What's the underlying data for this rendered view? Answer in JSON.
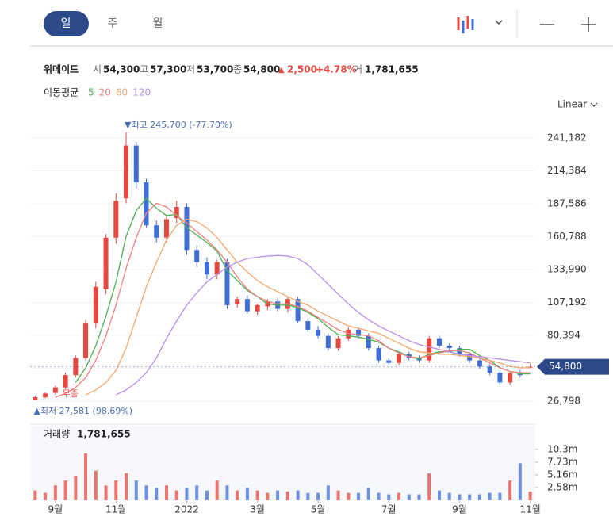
{
  "header": {
    "tabs": [
      "일",
      "주",
      "월"
    ],
    "scale_mode": "Linear"
  },
  "stock": {
    "name": "위메이드",
    "open_label": "시",
    "open": "54,300",
    "high_label": "고",
    "high": "57,300",
    "low_label": "저",
    "low": "53,700",
    "close_label": "종",
    "close": "54,800",
    "change_sign": "▲",
    "change": "2,500",
    "change_pct": "+4.78%",
    "volume_label": "거",
    "volume": "1,781,655"
  },
  "chart_data": {
    "type": "candlestick",
    "ma_title": "이동평균",
    "categories": [
      null,
      null,
      "9월",
      null,
      null,
      null,
      null,
      null,
      "11월",
      null,
      null,
      null,
      null,
      null,
      null,
      "2022",
      null,
      null,
      null,
      null,
      null,
      null,
      "3월",
      null,
      null,
      null,
      null,
      null,
      "5월",
      null,
      null,
      null,
      null,
      null,
      null,
      "7월",
      null,
      null,
      null,
      null,
      null,
      null,
      "9월",
      null,
      null,
      null,
      null,
      null,
      null,
      "11월"
    ],
    "open": [
      28000,
      30000,
      33500,
      38000,
      48000,
      62000,
      90000,
      118000,
      160000,
      192000,
      235000,
      205000,
      170000,
      160000,
      176000,
      185000,
      150000,
      140000,
      130000,
      140000,
      106000,
      110000,
      100000,
      104000,
      108000,
      102000,
      110000,
      92000,
      85000,
      80000,
      70000,
      78000,
      85000,
      80000,
      70000,
      60000,
      58000,
      65000,
      62000,
      60000,
      78000,
      72000,
      70000,
      65000,
      60000,
      55000,
      50000,
      42000,
      50000,
      54300
    ],
    "high": [
      31000,
      34000,
      39500,
      50000,
      64000,
      93000,
      124000,
      163000,
      196000,
      245700,
      238000,
      208000,
      174000,
      178000,
      190000,
      188000,
      154000,
      144000,
      142000,
      143000,
      112000,
      113000,
      106000,
      110000,
      111000,
      112000,
      112000,
      94000,
      88000,
      82000,
      80000,
      87000,
      87000,
      82000,
      72000,
      62000,
      67000,
      67000,
      64000,
      80000,
      80000,
      74000,
      72000,
      67000,
      62000,
      57000,
      52000,
      51000,
      52000,
      57300
    ],
    "low": [
      27581,
      29000,
      32000,
      36500,
      46000,
      60000,
      86000,
      114000,
      155000,
      188000,
      200000,
      168000,
      156000,
      156000,
      172000,
      146000,
      136000,
      126000,
      126000,
      102000,
      103000,
      98000,
      97000,
      101000,
      100000,
      99000,
      90000,
      83000,
      78000,
      68000,
      68000,
      76000,
      78000,
      68000,
      58000,
      56000,
      56000,
      60000,
      58000,
      58000,
      70000,
      68000,
      63000,
      58000,
      53000,
      48000,
      40000,
      40000,
      46000,
      53700
    ],
    "close": [
      30000,
      33000,
      38000,
      48000,
      62000,
      90000,
      120000,
      160000,
      190000,
      235000,
      205000,
      170000,
      160000,
      175000,
      185000,
      150000,
      140000,
      130000,
      140000,
      105000,
      110000,
      100000,
      105000,
      108000,
      102000,
      110000,
      92000,
      85000,
      80000,
      70000,
      78000,
      85000,
      80000,
      70000,
      60000,
      58000,
      65000,
      62000,
      60000,
      78000,
      72000,
      70000,
      65000,
      60000,
      55000,
      50000,
      42000,
      50000,
      48000,
      54800
    ],
    "up_color": "#e5483f",
    "down_color": "#3f6fd6",
    "moving_averages": [
      {
        "name": "5",
        "color": "#4caf50",
        "values": [
          null,
          null,
          null,
          null,
          42000,
          54000,
          72000,
          96000,
          124000,
          161000,
          182000,
          192000,
          184000,
          178000,
          179000,
          168000,
          162000,
          156000,
          149000,
          133000,
          125000,
          117000,
          112000,
          106000,
          105000,
          105000,
          103000,
          99000,
          94000,
          87000,
          81000,
          80000,
          79000,
          77000,
          75000,
          70000,
          67000,
          63000,
          61000,
          65000,
          67000,
          67000,
          69000,
          69000,
          64000,
          60000,
          54000,
          51000,
          49000,
          49000
        ]
      },
      {
        "name": "20",
        "color": "#f37f7f",
        "values": [
          null,
          null,
          30000,
          33000,
          38000,
          46000,
          60000,
          80000,
          105000,
          135000,
          160000,
          180000,
          188000,
          185000,
          178000,
          172000,
          165000,
          158000,
          150000,
          140000,
          128000,
          118000,
          112000,
          108000,
          106000,
          106000,
          104000,
          100000,
          95000,
          90000,
          85000,
          82000,
          81000,
          80000,
          76000,
          70000,
          66000,
          63000,
          62000,
          64000,
          66000,
          68000,
          68000,
          66000,
          62000,
          58000,
          54000,
          51000,
          50000,
          50000
        ]
      },
      {
        "name": "60",
        "color": "#f5a76b",
        "values": [
          null,
          null,
          null,
          null,
          null,
          32000,
          36000,
          42000,
          52000,
          70000,
          95000,
          120000,
          140000,
          158000,
          170000,
          175000,
          173000,
          168000,
          160000,
          150000,
          140000,
          132000,
          125000,
          120000,
          116000,
          112000,
          108000,
          105000,
          100000,
          96000,
          92000,
          88000,
          86000,
          84000,
          82000,
          78000,
          74000,
          70000,
          67000,
          66000,
          65000,
          65000,
          64000,
          63000,
          62000,
          60000,
          58000,
          55000,
          54000,
          54000
        ]
      },
      {
        "name": "120",
        "color": "#b98cf0",
        "values": [
          null,
          null,
          null,
          null,
          null,
          null,
          null,
          null,
          32000,
          36000,
          42000,
          50000,
          62000,
          78000,
          92000,
          105000,
          115000,
          124000,
          130000,
          136000,
          140000,
          143000,
          144000,
          145000,
          145500,
          145000,
          143000,
          138000,
          130000,
          122000,
          114000,
          106000,
          99000,
          93000,
          88000,
          84000,
          80000,
          76000,
          73000,
          71000,
          69000,
          67000,
          65000,
          64000,
          63000,
          62000,
          61000,
          60000,
          59000,
          58000
        ]
      }
    ],
    "ylim": [
      11300,
      256700
    ],
    "yticks": [
      {
        "value": 26798,
        "label": "26,798"
      },
      {
        "value": 53596,
        "label": "53,596"
      },
      {
        "value": 80394,
        "label": "80,394"
      },
      {
        "value": 107192,
        "label": "107,192"
      },
      {
        "value": 133990,
        "label": "133,990"
      },
      {
        "value": 160788,
        "label": "160,788"
      },
      {
        "value": 187586,
        "label": "187,586"
      },
      {
        "value": 214384,
        "label": "214,384"
      },
      {
        "value": 241182,
        "label": "241,182"
      }
    ],
    "last_price": {
      "value": 54800,
      "label": "54,800"
    },
    "annotations": {
      "max": "▼최고 245,700 (-77.70%)",
      "min": "▲최저 27,581 (98.69%)",
      "event": "무증"
    },
    "volume_title": "거래량",
    "volume_value": "1,781,655",
    "volume": [
      2000000,
      1500000,
      3000000,
      4000000,
      5000000,
      9500000,
      6000000,
      3000000,
      4000000,
      5500000,
      4000000,
      3000000,
      2500000,
      3000000,
      2000000,
      2500000,
      3000000,
      2000000,
      4000000,
      3000000,
      2000000,
      2500000,
      2000000,
      1500000,
      2000000,
      1800000,
      2000000,
      1500000,
      1500000,
      3000000,
      2000000,
      1500000,
      1500000,
      2500000,
      1500000,
      1200000,
      1500000,
      1200000,
      1200000,
      5500000,
      2000000,
      1500000,
      1200000,
      1200000,
      1200000,
      1500000,
      1500000,
      4000000,
      7500000,
      1781655
    ],
    "volume_ylim": [
      0,
      14630000
    ],
    "volume_ticks": [
      {
        "value": 2580000,
        "label": "2.58m"
      },
      {
        "value": 5160000,
        "label": "5.16m"
      },
      {
        "value": 7730000,
        "label": "7.73m"
      },
      {
        "value": 10300000,
        "label": "10.3m"
      }
    ]
  }
}
